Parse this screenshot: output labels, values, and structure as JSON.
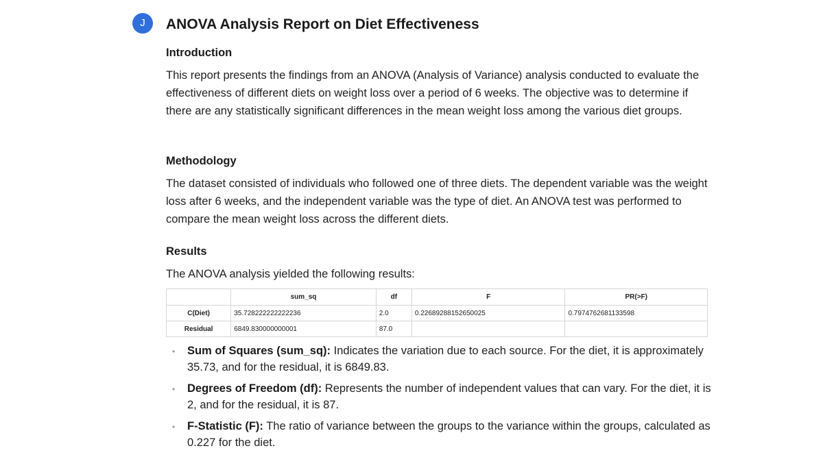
{
  "avatar": {
    "initial": "J"
  },
  "report": {
    "title": "ANOVA Analysis Report on Diet Effectiveness",
    "sections": {
      "introduction": {
        "heading": "Introduction",
        "text": "This report presents the findings from an ANOVA (Analysis of Variance) analysis conducted to evaluate the effectiveness of different diets on weight loss over a period of 6 weeks. The objective was to determine if there are any statistically significant differences in the mean weight loss among the various diet groups."
      },
      "methodology": {
        "heading": "Methodology",
        "text": "The dataset consisted of individuals who followed one of three diets. The dependent variable was the weight loss after 6 weeks, and the independent variable was the type of diet. An ANOVA test was performed to compare the mean weight loss across the different diets."
      },
      "results": {
        "heading": "Results",
        "intro": "The ANOVA analysis yielded the following results:"
      }
    },
    "table": {
      "columns": [
        "",
        "sum_sq",
        "df",
        "F",
        "PR(>F)"
      ],
      "rows": [
        {
          "label": "C(Diet)",
          "sum_sq": "35.728222222222236",
          "df": "2.0",
          "F": "0.22689288152650025",
          "pr": "0.7974762681133598"
        },
        {
          "label": "Residual",
          "sum_sq": "6849.830000000001",
          "df": "87.0",
          "F": "",
          "pr": ""
        }
      ]
    },
    "bullets": [
      {
        "term": "Sum of Squares (sum_sq):",
        "text": " Indicates the variation due to each source. For the diet, it is approximately 35.73, and for the residual, it is 6849.83."
      },
      {
        "term": "Degrees of Freedom (df):",
        "text": " Represents the number of independent values that can vary. For the diet, it is 2, and for the residual, it is 87."
      },
      {
        "term": "F-Statistic (F):",
        "text": " The ratio of variance between the groups to the variance within the groups, calculated as 0.227 for the diet."
      }
    ]
  }
}
